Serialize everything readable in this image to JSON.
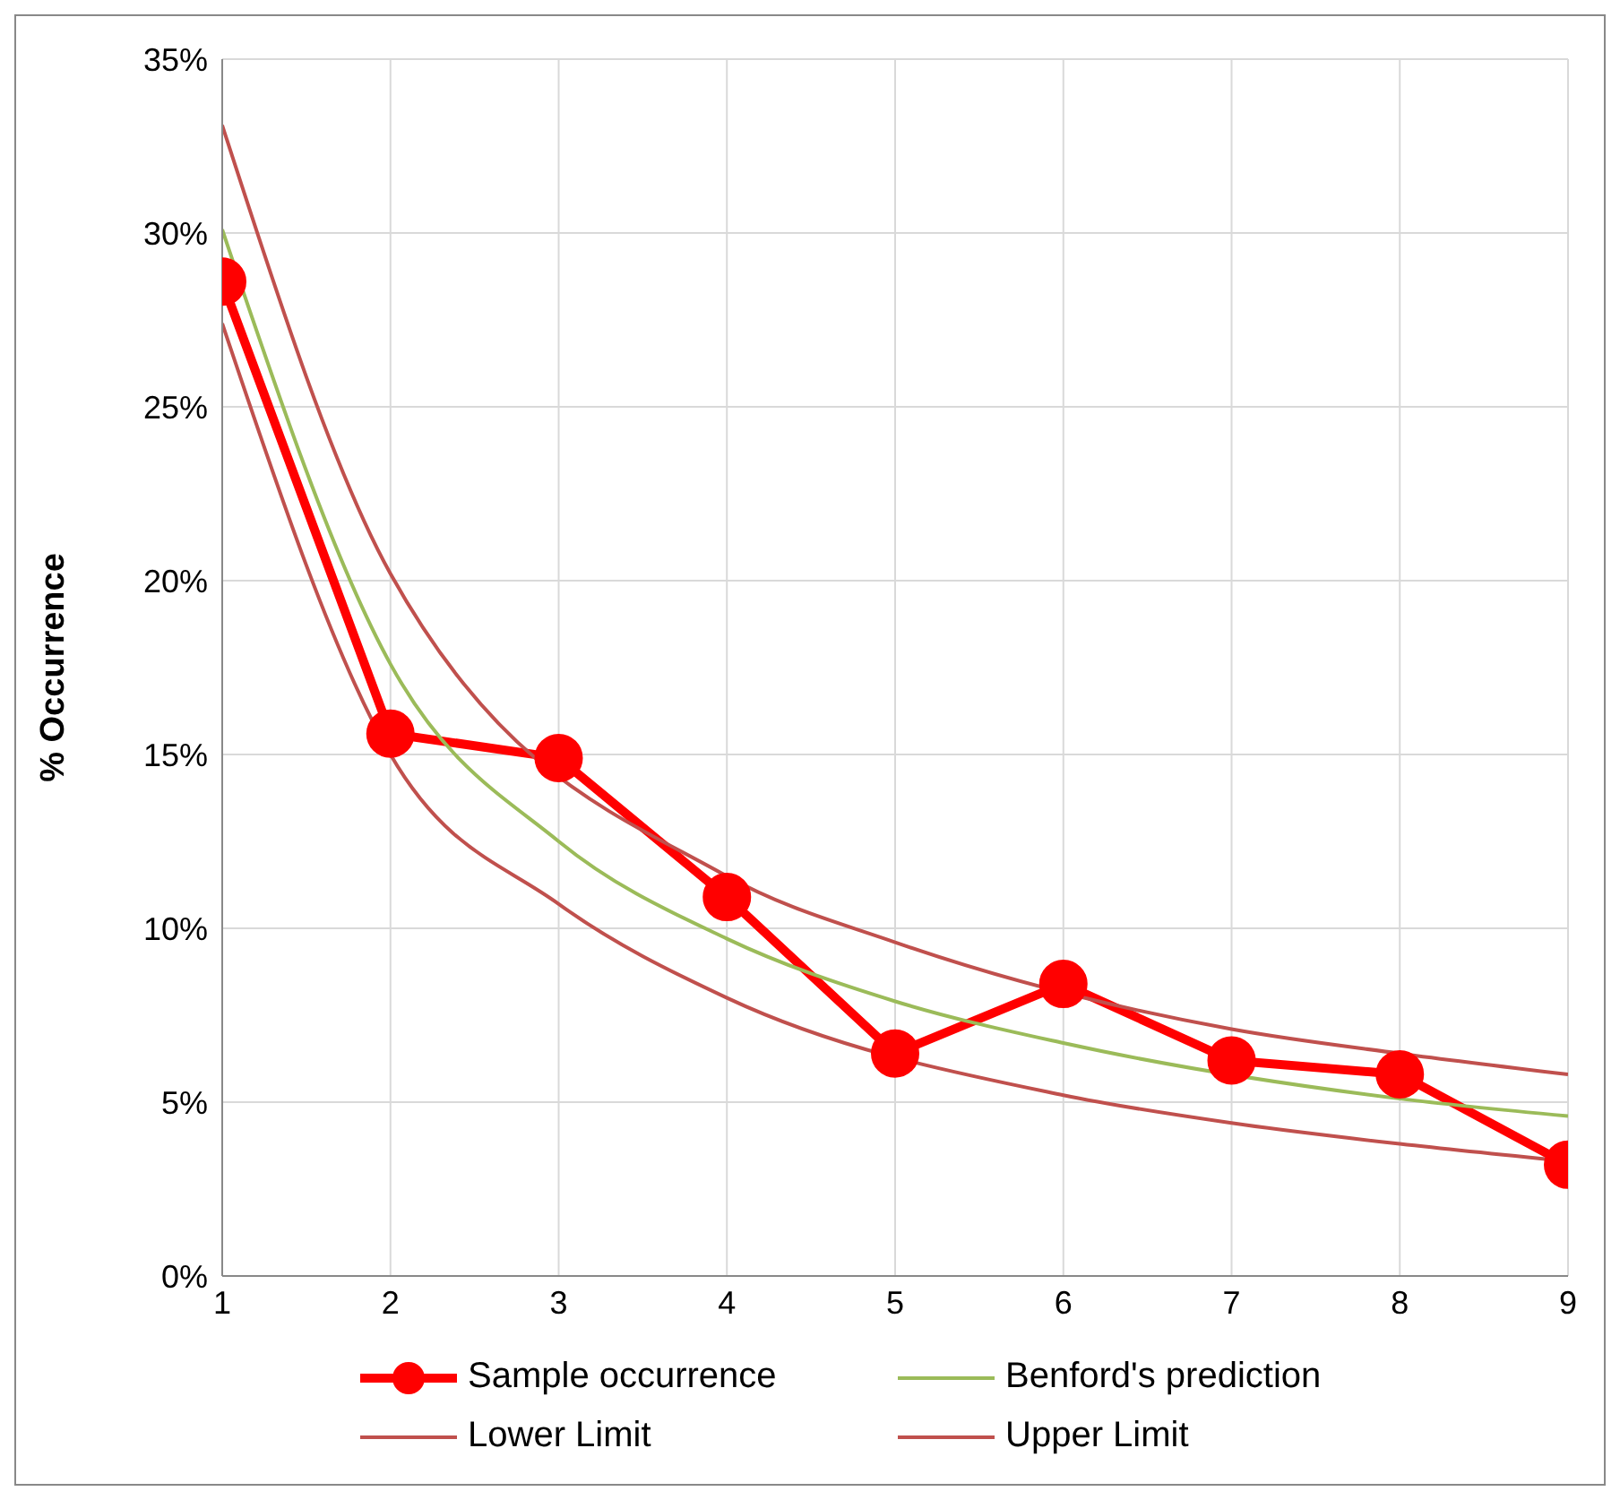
{
  "chart_data": {
    "type": "line",
    "ylabel": "% Occurrence",
    "x": [
      1,
      2,
      3,
      4,
      5,
      6,
      7,
      8,
      9
    ],
    "xlim": [
      1,
      9
    ],
    "xticks": [
      1,
      2,
      3,
      4,
      5,
      6,
      7,
      8,
      9
    ],
    "ylim": [
      0,
      35
    ],
    "yticks": [
      {
        "value": 0,
        "label": "0%"
      },
      {
        "value": 5,
        "label": "5%"
      },
      {
        "value": 10,
        "label": "10%"
      },
      {
        "value": 15,
        "label": "15%"
      },
      {
        "value": 20,
        "label": "20%"
      },
      {
        "value": 25,
        "label": "25%"
      },
      {
        "value": 30,
        "label": "30%"
      },
      {
        "value": 35,
        "label": "35%"
      }
    ],
    "grid": true,
    "legend": "bottom",
    "line_style": "solid",
    "series": [
      {
        "name": "Sample occurrence",
        "color": "#ff0000",
        "marker": "circle",
        "values": [
          28.6,
          15.6,
          14.9,
          10.9,
          6.4,
          8.4,
          6.2,
          5.8,
          3.2
        ]
      },
      {
        "name": "Benford's prediction",
        "color": "#9bbb59",
        "marker": "none",
        "values": [
          30.1,
          17.6,
          12.5,
          9.7,
          7.9,
          6.7,
          null,
          5.1,
          4.6
        ]
      },
      {
        "name": "Lower Limit",
        "color": "#c0504d",
        "marker": "none",
        "values": [
          27.4,
          15.0,
          10.7,
          8.0,
          null,
          5.2,
          4.4,
          3.8,
          3.3
        ]
      },
      {
        "name": "Upper Limit",
        "color": "#c0504d",
        "marker": "none",
        "values": [
          33.1,
          20.2,
          null,
          11.5,
          9.6,
          null,
          7.1,
          6.4,
          5.8
        ]
      }
    ]
  }
}
